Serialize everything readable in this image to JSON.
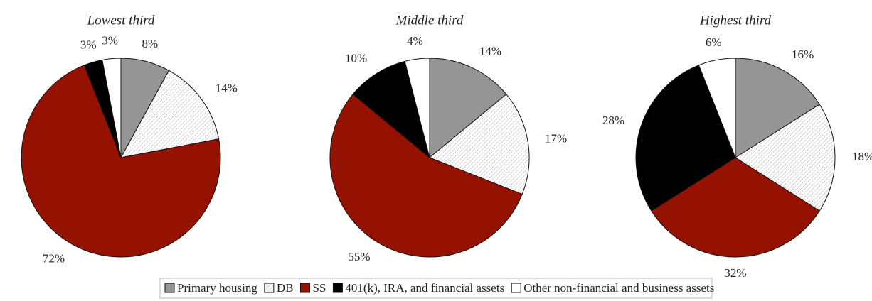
{
  "legend": {
    "labels": [
      "Primary housing",
      "DB",
      "SS",
      "401(k), IRA, and financial assets",
      "Other non-financial and business assets"
    ],
    "colors": [
      "#959595",
      "hatch",
      "#951200",
      "#000000",
      "#ffffff"
    ]
  },
  "chart_data": [
    {
      "type": "pie",
      "title": "Lowest third",
      "values": [
        8,
        14,
        72,
        3,
        3
      ],
      "value_labels": [
        "8%",
        "14%",
        "72%",
        "3%",
        "3%"
      ]
    },
    {
      "type": "pie",
      "title": "Middle third",
      "values": [
        14,
        17,
        55,
        10,
        4
      ],
      "value_labels": [
        "14%",
        "17%",
        "55%",
        "10%",
        "4%"
      ]
    },
    {
      "type": "pie",
      "title": "Highest third",
      "values": [
        16,
        18,
        32,
        28,
        6
      ],
      "value_labels": [
        "16%",
        "18%",
        "32%",
        "28%",
        "6%"
      ]
    }
  ]
}
